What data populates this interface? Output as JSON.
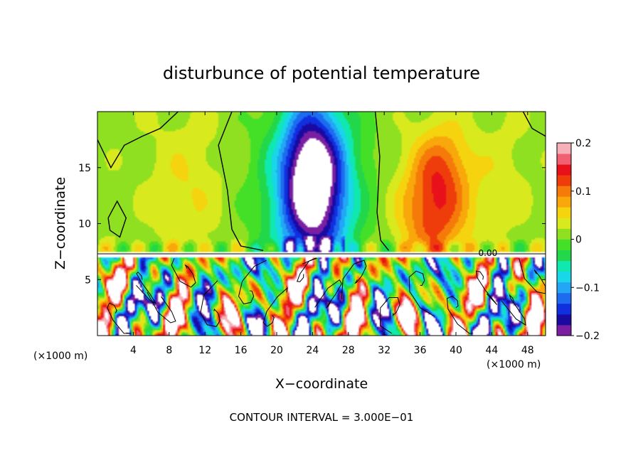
{
  "chart_data": {
    "type": "heatmap",
    "title": "disturbunce of potential temperature",
    "xlabel": "X−coordinate",
    "ylabel": "Z−coordinate",
    "x_unit_left": "(×1000 m)",
    "x_unit_right": "(×1000 m)",
    "footer": "CONTOUR INTERVAL = 3.000E−01",
    "contour_label": "0.00",
    "xlim": [
      0,
      50
    ],
    "ylim": [
      0,
      20
    ],
    "x_ticks": [
      "4",
      "8",
      "12",
      "16",
      "20",
      "24",
      "28",
      "32",
      "36",
      "40",
      "44",
      "48"
    ],
    "x_tick_values": [
      4,
      8,
      12,
      16,
      20,
      24,
      28,
      32,
      36,
      40,
      44,
      48
    ],
    "y_ticks": [
      "5",
      "10",
      "15"
    ],
    "y_tick_values": [
      5,
      10,
      15
    ],
    "colorbar": {
      "range": [
        -0.2,
        0.2
      ],
      "tick_labels": [
        "0.2",
        "0.1",
        "0",
        "−0.1",
        "−0.2"
      ],
      "tick_values": [
        0.2,
        0.1,
        0,
        -0.1,
        -0.2
      ],
      "colors": [
        "#7a1fa2",
        "#1a0aa0",
        "#1030e0",
        "#1d6cf0",
        "#22a6f5",
        "#19d6e8",
        "#10e8b0",
        "#22d84a",
        "#44e028",
        "#8fe020",
        "#d8ea1e",
        "#f5d40f",
        "#f8a80b",
        "#f57a0a",
        "#ee3c0a",
        "#e8101a",
        "#f06070",
        "#f6b0b8"
      ]
    },
    "inversion_height": 7.3,
    "upper_anomalies": [
      {
        "x": 24.0,
        "z": 14.0,
        "sx": 3.4,
        "sz": 6.5,
        "value": -0.22
      },
      {
        "x": 24.0,
        "z": 12.0,
        "sx": 6.0,
        "sz": 9.0,
        "value": -0.08
      },
      {
        "x": 37.5,
        "z": 11.0,
        "sx": 3.8,
        "sz": 4.8,
        "value": 0.11
      },
      {
        "x": 38.5,
        "z": 15.5,
        "sx": 3.0,
        "sz": 3.5,
        "value": 0.06
      },
      {
        "x": 10.0,
        "z": 13.0,
        "sx": 4.0,
        "sz": 6.0,
        "value": 0.03
      },
      {
        "x": 45.0,
        "z": 14.0,
        "sx": 3.0,
        "sz": 5.0,
        "value": 0.02
      }
    ]
  }
}
